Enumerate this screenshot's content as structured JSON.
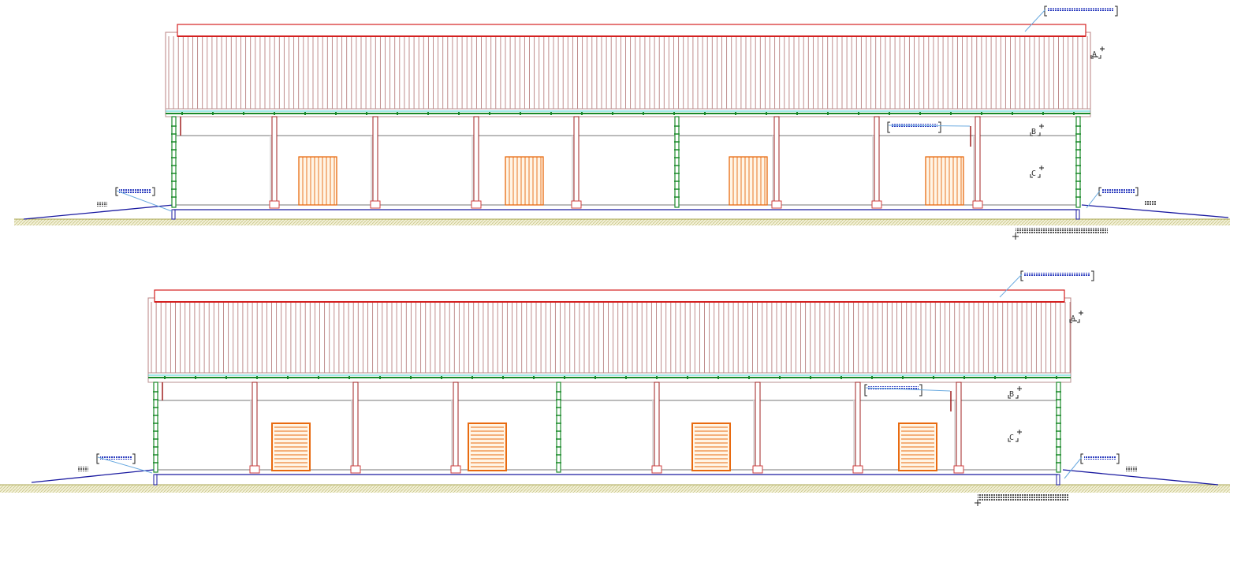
{
  "drawing": {
    "elevations": [
      {
        "id": "elevation-1",
        "marker_labels": [
          "A",
          "B",
          "C"
        ],
        "door_style": "vertical-boards"
      },
      {
        "id": "elevation-2",
        "marker_labels": [
          "A",
          "B",
          "C"
        ],
        "door_style": "horizontal-slats"
      }
    ],
    "colors": {
      "roof_fascia": "#d42020",
      "cladding": "#b88080",
      "column": "#a02020",
      "drainpipe": "#1a8a2a",
      "door": "#e86a10",
      "slab": "#1a1aa0",
      "ground": "#d8d6a0",
      "annotation_fill": "#3040c0",
      "leader": "#6aaae0"
    }
  }
}
